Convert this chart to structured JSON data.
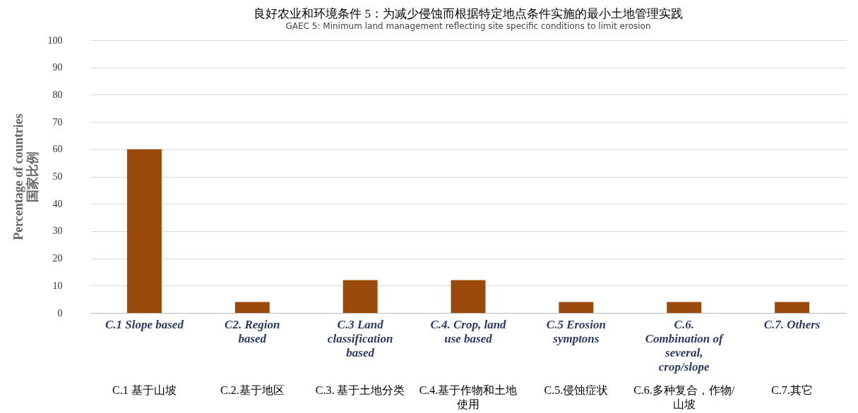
{
  "chart_data": {
    "type": "bar",
    "title": "良好农业和环境条件 5：为减少侵蚀而根据特定地点条件实施的最小土地管理实践",
    "subtitle": "GAEC  5: Minimum land management reflecting site specific conditions to limit erosion",
    "ylabel": "Percentage of countries\n国家比例",
    "categories": [
      "C.1 Slope based",
      "C2. Region based",
      "C.3 Land classification based",
      "C.4. Crop, land use based",
      "C.5 Erosion symptons",
      "C.6. Combination of several, crop/slope",
      "C.7. Others"
    ],
    "values": [
      60,
      4,
      12,
      12,
      4,
      4,
      4
    ],
    "color": "#994a0a",
    "ylim": [
      0,
      100
    ],
    "yticks": [
      0,
      10,
      20,
      30,
      40,
      50,
      60,
      70,
      80,
      90,
      100
    ],
    "grid": "y",
    "annotations": [
      "C.1  基于山坡",
      "C.2.基于地区",
      "C.3.  基于土地分类",
      "C.4.基于作物和土地使用",
      "C.5.侵蚀症状",
      "C.6.多种复合，作物/山坡",
      "C.7.其它"
    ]
  }
}
